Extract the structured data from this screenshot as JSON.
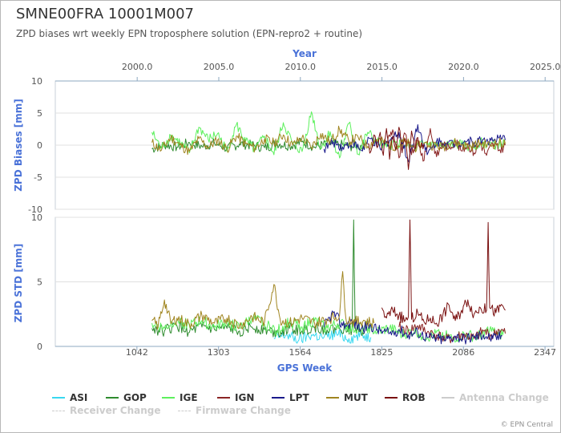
{
  "header": {
    "title": "SMNE00FRA 10001M007",
    "subtitle": "ZPD biases wrt weekly EPN troposphere solution (EPN-repro2 + routine)"
  },
  "credits": "© EPN Central",
  "chart_data": [
    {
      "type": "line",
      "panel": "top",
      "ylabel": "ZPD Biases [mm]",
      "x2label": "Year",
      "x2ticks": [
        "2000.0",
        "2005.0",
        "2010.0",
        "2015.0",
        "2020.0",
        "2025.0"
      ],
      "ylim": [
        -10,
        10
      ],
      "yticks": [
        "10",
        "5",
        "0",
        "-5",
        "-10"
      ],
      "grid": true,
      "series": [
        {
          "name": "GOP",
          "color": "#2e8b2e",
          "x": [
            1090,
            1130,
            1170,
            1210,
            1250,
            1290,
            1330,
            1370,
            1410,
            1450,
            1490,
            1530,
            1570,
            1610,
            1650,
            1690,
            1730,
            1770
          ],
          "y": [
            -0.6,
            0.1,
            -0.3,
            0.4,
            -0.2,
            0.3,
            -0.5,
            0.2,
            0.0,
            -0.4,
            0.3,
            -0.1,
            0.5,
            -0.3,
            0.2,
            0.1,
            -0.2,
            0.0
          ]
        },
        {
          "name": "IGE",
          "color": "#5df05d",
          "x": [
            1090,
            1120,
            1150,
            1180,
            1210,
            1240,
            1270,
            1300,
            1330,
            1360,
            1390,
            1420,
            1450,
            1480,
            1510,
            1540,
            1570,
            1600,
            1630,
            1660,
            1690,
            1720,
            1750,
            1780,
            1810,
            1840,
            1870,
            1900,
            1930,
            1960,
            1990,
            2020,
            2050,
            2080,
            2110,
            2140,
            2170,
            2200,
            2220
          ],
          "y": [
            2.0,
            -0.5,
            1.5,
            0.4,
            -1.2,
            2.8,
            0.9,
            1.8,
            -1.0,
            3.2,
            0.6,
            -0.8,
            1.4,
            -1.5,
            3.5,
            0.2,
            -1.0,
            5.2,
            -0.6,
            2.1,
            -2.0,
            3.4,
            -1.4,
            2.0,
            0.5,
            -0.3,
            0.4,
            0.0,
            -0.5,
            0.3,
            0.1,
            -0.2,
            0.2,
            0.0,
            -0.3,
            0.4,
            0.1,
            0.0,
            0.2
          ]
        },
        {
          "name": "IGN",
          "color": "#8b2525",
          "x": [
            1840,
            1860,
            1880,
            1900,
            1920,
            1940,
            1960,
            1980,
            2000,
            2020,
            2040,
            2060,
            2080,
            2100,
            2120,
            2140,
            2160,
            2180,
            2200,
            2220
          ],
          "y": [
            0.5,
            2.4,
            -2.0,
            1.8,
            -1.5,
            0.7,
            -2.4,
            2.6,
            -1.8,
            0.3,
            -0.5,
            0.8,
            -0.9,
            0.2,
            -1.2,
            0.4,
            -1.6,
            0.3,
            -0.8,
            0.0
          ]
        },
        {
          "name": "LPT",
          "color": "#1a1a8b",
          "x": [
            1640,
            1670,
            1700,
            1730,
            1760,
            1790,
            1820,
            1850,
            1880,
            1910,
            1940,
            1970,
            2000,
            2030,
            2060,
            2090,
            2120,
            2150,
            2180,
            2210,
            2220
          ],
          "y": [
            -0.6,
            0.5,
            -0.3,
            0.4,
            -0.8,
            1.0,
            -0.6,
            0.8,
            2.0,
            -2.5,
            3.2,
            -1.5,
            0.6,
            0.3,
            0.2,
            0.7,
            0.4,
            0.9,
            0.6,
            1.0,
            0.8
          ]
        },
        {
          "name": "MUT",
          "color": "#a08520",
          "x": [
            1090,
            1120,
            1150,
            1180,
            1210,
            1240,
            1270,
            1300,
            1330,
            1360,
            1390,
            1420,
            1450,
            1480,
            1510,
            1540,
            1570,
            1600,
            1630,
            1660,
            1690,
            1720,
            1750,
            1780,
            1810,
            1840,
            1870,
            1900,
            1930,
            1960,
            1990,
            2020,
            2050,
            2080,
            2110,
            2140,
            2170,
            2200,
            2220
          ],
          "y": [
            0.4,
            -0.8,
            1.2,
            0.0,
            -1.0,
            1.0,
            -0.3,
            0.8,
            -0.6,
            1.4,
            0.2,
            -0.5,
            1.0,
            0.3,
            1.6,
            0.0,
            1.2,
            -0.4,
            1.8,
            0.5,
            2.4,
            0.6,
            1.2,
            -0.2,
            0.9,
            0.3,
            -0.2,
            0.5,
            -0.4,
            0.2,
            0.0,
            -0.3,
            0.5,
            0.1,
            -0.2,
            0.3,
            0.0,
            0.4,
            0.2
          ]
        },
        {
          "name": "ROB",
          "color": "#7a1010",
          "x": [
            1780,
            1790,
            1800,
            1810,
            1820,
            1830,
            1840,
            1850,
            1860,
            1870,
            1880,
            1890,
            1900,
            1910,
            1920,
            1930,
            1940,
            1950,
            1960
          ],
          "y": [
            0.2,
            -1.0,
            1.6,
            -0.4,
            2.0,
            -1.6,
            2.6,
            -2.2,
            1.4,
            -0.8,
            2.8,
            -1.2,
            1.0,
            -3.8,
            2.2,
            -0.6,
            1.2,
            -0.4,
            0.3
          ]
        }
      ]
    },
    {
      "type": "line",
      "panel": "bottom",
      "ylabel": "ZPD STD [mm]",
      "xlabel": "GPS Week",
      "xticks": [
        "1042",
        "1303",
        "1564",
        "1825",
        "2086",
        "2347"
      ],
      "ylim": [
        0,
        10
      ],
      "yticks": [
        "10",
        "5",
        "0"
      ],
      "grid": true,
      "series": [
        {
          "name": "ASI",
          "color": "#39d8f0",
          "x": [
            1480,
            1520,
            1560,
            1600,
            1640,
            1680,
            1720,
            1760,
            1790
          ],
          "y": [
            0.6,
            0.9,
            0.5,
            0.9,
            0.7,
            1.0,
            0.6,
            0.9,
            0.7
          ]
        },
        {
          "name": "GOP",
          "color": "#2e8b2e",
          "x": [
            1090,
            1130,
            1170,
            1210,
            1250,
            1290,
            1330,
            1370,
            1410,
            1450,
            1490,
            1530,
            1570,
            1610,
            1650,
            1690,
            1730,
            1735,
            1740,
            1770
          ],
          "y": [
            1.4,
            1.2,
            1.6,
            1.1,
            1.5,
            1.3,
            1.4,
            1.2,
            1.5,
            1.3,
            1.1,
            1.4,
            1.2,
            1.5,
            1.3,
            1.4,
            1.3,
            9.8,
            1.5,
            1.2
          ]
        },
        {
          "name": "IGE",
          "color": "#5df05d",
          "x": [
            1090,
            1130,
            1170,
            1210,
            1250,
            1290,
            1330,
            1370,
            1410,
            1450,
            1490,
            1530,
            1570,
            1610,
            1650,
            1690,
            1730,
            1770,
            1810,
            1850,
            1890,
            1930,
            1970,
            2010,
            2050,
            2090,
            2130,
            2170,
            2200,
            2220
          ],
          "y": [
            1.8,
            1.4,
            2.1,
            1.6,
            2.0,
            1.5,
            1.9,
            1.4,
            2.2,
            1.7,
            1.2,
            1.9,
            1.5,
            2.0,
            1.4,
            1.8,
            1.3,
            1.6,
            1.1,
            1.4,
            0.9,
            1.2,
            0.7,
            1.0,
            0.6,
            0.9,
            0.7,
            1.3,
            0.8,
            1.1
          ]
        },
        {
          "name": "IGN",
          "color": "#8b2525",
          "x": [
            1880,
            1910,
            1940,
            1970,
            2000,
            2030,
            2060,
            2090,
            2120,
            2150,
            2180,
            2200,
            2220
          ],
          "y": [
            1.5,
            1.2,
            1.6,
            1.1,
            0.9,
            0.5,
            0.7,
            0.9,
            0.6,
            1.2,
            0.8,
            1.3,
            1.0
          ]
        },
        {
          "name": "LPT",
          "color": "#1a1a8b",
          "x": [
            1640,
            1670,
            1700,
            1730,
            1760,
            1790,
            1820,
            1850,
            1880,
            1910,
            1940,
            1970,
            2000,
            2030,
            2060,
            2090,
            2120,
            2150,
            2180,
            2210
          ],
          "y": [
            1.5,
            2.6,
            1.6,
            1.9,
            1.4,
            1.6,
            1.2,
            1.0,
            1.3,
            0.9,
            1.1,
            0.7,
            0.6,
            0.5,
            0.8,
            0.6,
            0.7,
            0.9,
            0.6,
            0.8
          ]
        },
        {
          "name": "MUT",
          "color": "#a08520",
          "x": [
            1090,
            1110,
            1130,
            1150,
            1170,
            1210,
            1250,
            1290,
            1330,
            1370,
            1410,
            1450,
            1480,
            1500,
            1530,
            1570,
            1610,
            1650,
            1690,
            1700,
            1710,
            1740,
            1770,
            1800
          ],
          "y": [
            2.0,
            1.6,
            3.6,
            1.8,
            2.2,
            1.7,
            2.4,
            1.8,
            2.2,
            1.6,
            2.3,
            1.9,
            4.8,
            2.1,
            1.8,
            2.2,
            1.8,
            2.1,
            2.4,
            5.8,
            2.2,
            1.9,
            2.0,
            1.8
          ]
        },
        {
          "name": "ROB",
          "color": "#7a1010",
          "x": [
            1825,
            1840,
            1860,
            1880,
            1900,
            1910,
            1915,
            1920,
            1940,
            1960,
            1980,
            2000,
            2020,
            2040,
            2060,
            2080,
            2100,
            2120,
            2140,
            2160,
            2165,
            2170,
            2190,
            2210,
            2220
          ],
          "y": [
            3.0,
            2.2,
            2.8,
            2.4,
            2.0,
            2.3,
            9.8,
            2.1,
            2.6,
            1.9,
            2.2,
            1.8,
            2.4,
            3.2,
            2.0,
            2.8,
            3.6,
            2.5,
            3.0,
            2.8,
            9.6,
            3.0,
            2.6,
            3.2,
            2.8
          ]
        }
      ]
    }
  ],
  "legend": {
    "items": [
      {
        "name": "ASI",
        "color": "#39d8f0",
        "style": "solid",
        "dim": false
      },
      {
        "name": "GOP",
        "color": "#2e8b2e",
        "style": "solid",
        "dim": false
      },
      {
        "name": "IGE",
        "color": "#5df05d",
        "style": "solid",
        "dim": false
      },
      {
        "name": "IGN",
        "color": "#8b2525",
        "style": "solid",
        "dim": false
      },
      {
        "name": "LPT",
        "color": "#1a1a8b",
        "style": "solid",
        "dim": false
      },
      {
        "name": "MUT",
        "color": "#a08520",
        "style": "solid",
        "dim": false
      },
      {
        "name": "ROB",
        "color": "#7a1010",
        "style": "solid",
        "dim": false
      },
      {
        "name": "Antenna Change",
        "color": "#cccccc",
        "style": "solid",
        "dim": true
      },
      {
        "name": "Receiver Change",
        "color": "#cccccc",
        "style": "dashed",
        "dim": true
      },
      {
        "name": "Firmware Change",
        "color": "#cccccc",
        "style": "dashed",
        "dim": true
      }
    ]
  }
}
